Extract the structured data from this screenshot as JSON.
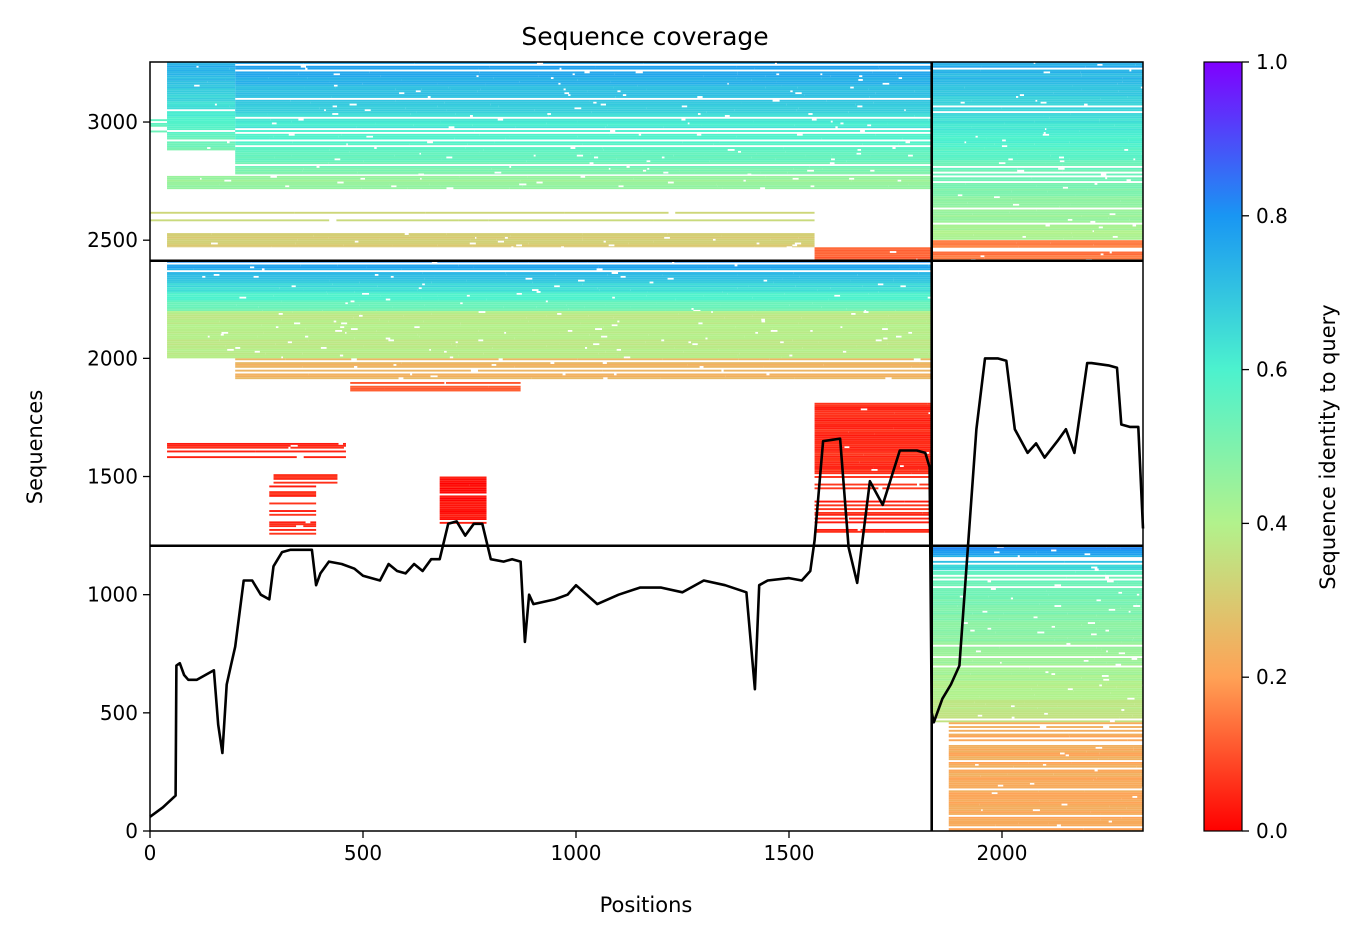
{
  "chart_data": {
    "type": "heatmap",
    "title": "Sequence coverage",
    "xlabel": "Positions",
    "ylabel": "Sequences",
    "xlim": [
      0,
      2331
    ],
    "ylim": [
      0,
      3254
    ],
    "x_ticks": [
      0,
      500,
      1000,
      1500,
      2000
    ],
    "y_ticks": [
      0,
      500,
      1000,
      1500,
      2000,
      2500,
      3000
    ],
    "colorbar": {
      "label": "Sequence identity to query",
      "range": [
        0,
        1
      ],
      "ticks": [
        "0.0",
        "0.2",
        "0.4",
        "0.6",
        "0.8",
        "1.0"
      ],
      "colormap": [
        "#ff0000",
        "#ffa256",
        "#b2f28c",
        "#4cf2ce",
        "#1996f3",
        "#8000ff"
      ]
    },
    "chain_boundaries_x": [
      1835
    ],
    "block_boundaries_y": [
      1207,
      2413
    ],
    "blocks": [
      {
        "y_range": [
          2413,
          3254
        ],
        "regions": [
          {
            "x": [
              0,
              40
            ],
            "y": [
              2900,
              3060
            ],
            "identity": 0.55,
            "density": 0.3
          },
          {
            "x": [
              40,
              200
            ],
            "y": [
              2880,
              3254
            ],
            "identity_top": 0.75,
            "identity_bottom": 0.52,
            "density": 0.95
          },
          {
            "x": [
              200,
              1835
            ],
            "y": [
              2780,
              3254
            ],
            "identity_top": 0.78,
            "identity_bottom": 0.5,
            "density": 0.9
          },
          {
            "x": [
              40,
              1835
            ],
            "y": [
              2700,
              2780
            ],
            "identity": 0.45,
            "density": 0.7
          },
          {
            "x": [
              0,
              1560
            ],
            "y": [
              2530,
              2700
            ],
            "identity": 0.35,
            "density": 0.25
          },
          {
            "x": [
              40,
              1560
            ],
            "y": [
              2470,
              2530
            ],
            "identity": 0.3,
            "density": 0.95
          },
          {
            "x": [
              1560,
              1835
            ],
            "y": [
              2413,
              2470
            ],
            "identity": 0.12,
            "density": 0.95
          },
          {
            "x": [
              1835,
              2331
            ],
            "y": [
              2500,
              3254
            ],
            "identity_top": 0.75,
            "identity_bottom": 0.4,
            "density": 0.9
          },
          {
            "x": [
              1835,
              2331
            ],
            "y": [
              2413,
              2500
            ],
            "identity": 0.15,
            "density": 0.75
          }
        ]
      },
      {
        "y_range": [
          1207,
          2413
        ],
        "regions": [
          {
            "x": [
              40,
              1835
            ],
            "y": [
              2200,
              2413
            ],
            "identity_top": 0.8,
            "identity_bottom": 0.5,
            "density": 0.95
          },
          {
            "x": [
              40,
              1835
            ],
            "y": [
              2000,
              2200
            ],
            "identity": 0.38,
            "density": 0.9
          },
          {
            "x": [
              200,
              1835
            ],
            "y": [
              1900,
              2000
            ],
            "identity": 0.24,
            "density": 0.9
          },
          {
            "x": [
              470,
              870
            ],
            "y": [
              1860,
              1900
            ],
            "identity": 0.1,
            "density": 0.95
          },
          {
            "x": [
              1560,
              1835
            ],
            "y": [
              1510,
              1820
            ],
            "identity": 0.05,
            "density": 0.95
          },
          {
            "x": [
              40,
              460
            ],
            "y": [
              1530,
              1650
            ],
            "identity": 0.05,
            "density": 0.3
          },
          {
            "x": [
              290,
              440
            ],
            "y": [
              1470,
              1510
            ],
            "identity": 0.05,
            "density": 0.6
          },
          {
            "x": [
              280,
              390
            ],
            "y": [
              1250,
              1470
            ],
            "identity": 0.05,
            "density": 0.4
          },
          {
            "x": [
              680,
              790
            ],
            "y": [
              1300,
              1500
            ],
            "identity": 0.02,
            "density": 0.9
          },
          {
            "x": [
              1560,
              1835
            ],
            "y": [
              1260,
              1510
            ],
            "identity": 0.05,
            "density": 0.35
          }
        ]
      },
      {
        "y_range": [
          0,
          1207
        ],
        "regions": [
          {
            "x": [
              1835,
              2331
            ],
            "y": [
              1100,
              1207
            ],
            "identity_top": 0.82,
            "identity_bottom": 0.62,
            "density": 0.85
          },
          {
            "x": [
              1835,
              2331
            ],
            "y": [
              460,
              1100
            ],
            "identity_top": 0.55,
            "identity_bottom": 0.36,
            "density": 0.9
          },
          {
            "x": [
              1875,
              2331
            ],
            "y": [
              0,
              460
            ],
            "identity": 0.22,
            "density": 0.85
          }
        ]
      }
    ],
    "coverage_line": {
      "name": "",
      "x": [
        0,
        30,
        60,
        62,
        70,
        80,
        90,
        110,
        150,
        160,
        170,
        180,
        190,
        200,
        220,
        240,
        260,
        280,
        290,
        310,
        330,
        380,
        390,
        400,
        420,
        450,
        480,
        500,
        540,
        560,
        580,
        600,
        620,
        640,
        660,
        680,
        700,
        720,
        740,
        760,
        780,
        800,
        830,
        850,
        870,
        880,
        890,
        900,
        950,
        980,
        1000,
        1050,
        1100,
        1150,
        1200,
        1250,
        1300,
        1350,
        1400,
        1420,
        1430,
        1450,
        1500,
        1530,
        1550,
        1560,
        1580,
        1620,
        1640,
        1660,
        1690,
        1720,
        1760,
        1800,
        1820,
        1830,
        1835,
        1840,
        1860,
        1880,
        1900,
        1920,
        1940,
        1960,
        1990,
        2010,
        2030,
        2060,
        2080,
        2100,
        2130,
        2150,
        2170,
        2200,
        2210,
        2250,
        2270,
        2280,
        2300,
        2320,
        2331
      ],
      "y": [
        60,
        100,
        150,
        700,
        710,
        660,
        640,
        640,
        680,
        450,
        330,
        620,
        700,
        780,
        1060,
        1060,
        1000,
        980,
        1120,
        1180,
        1190,
        1190,
        1040,
        1090,
        1140,
        1130,
        1110,
        1080,
        1060,
        1130,
        1100,
        1090,
        1130,
        1100,
        1150,
        1150,
        1300,
        1310,
        1250,
        1300,
        1300,
        1150,
        1140,
        1150,
        1140,
        800,
        1000,
        960,
        980,
        1000,
        1040,
        960,
        1000,
        1030,
        1030,
        1010,
        1060,
        1040,
        1010,
        600,
        1040,
        1060,
        1070,
        1060,
        1100,
        1230,
        1650,
        1660,
        1200,
        1050,
        1480,
        1380,
        1610,
        1610,
        1600,
        1540,
        500,
        460,
        560,
        620,
        700,
        1200,
        1700,
        2000,
        2000,
        1990,
        1700,
        1600,
        1640,
        1580,
        1650,
        1700,
        1600,
        1980,
        1980,
        1970,
        1960,
        1720,
        1710,
        1710,
        1280
      ]
    }
  }
}
